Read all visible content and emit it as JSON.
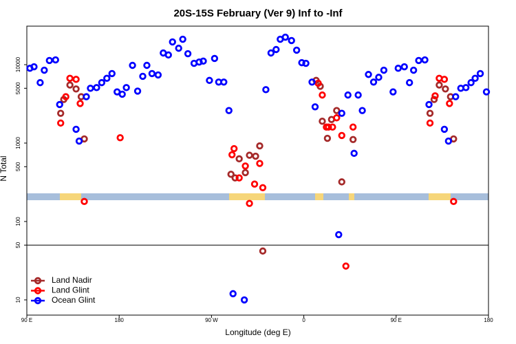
{
  "chart_data": {
    "type": "scatter",
    "title": "20S-15S February (Ver 9)   Inf to -Inf",
    "x_label": "Longitude (deg E)",
    "y_label": "N Total",
    "xlim": [
      90,
      540
    ],
    "xticks": [
      {
        "value": 90,
        "label": "90 E"
      },
      180,
      {
        "value": 270,
        "label": "90 W"
      },
      {
        "value": 360,
        "label": "0"
      },
      {
        "value": 450,
        "label": "90 E"
      },
      {
        "value": 540,
        "label": "180"
      }
    ],
    "ylim": [
      6.4,
      31000
    ],
    "yticks": [
      10,
      50,
      100,
      500,
      1000,
      5000,
      10000
    ],
    "log_y": true,
    "hline": 50,
    "legend": "bottom-left",
    "series": [
      {
        "name": "Land Nadir",
        "color": "#a52a2a",
        "x": [
          123,
          126,
          132,
          138,
          143,
          146,
          289,
          293,
          297,
          303,
          307,
          313,
          317,
          320,
          372,
          376,
          378,
          383,
          387,
          392,
          397,
          408,
          483,
          487,
          492,
          498,
          503,
          506
        ],
        "values": [
          2400,
          3600,
          5500,
          4900,
          3900,
          1130,
          400,
          360,
          630,
          420,
          700,
          680,
          920,
          42,
          6300,
          5300,
          1900,
          1150,
          2000,
          2600,
          320,
          1110,
          2400,
          3600,
          5500,
          4900,
          3900,
          1130
        ]
      },
      {
        "name": "Land Glint",
        "color": "#ff0000",
        "x": [
          123,
          128,
          132,
          138,
          142,
          146,
          181,
          290,
          292,
          297,
          303,
          307,
          312,
          317,
          320,
          374,
          378,
          382,
          384,
          388,
          392,
          397,
          401,
          408,
          483,
          488,
          492,
          497,
          502,
          506
        ],
        "values": [
          1800,
          3900,
          6700,
          6500,
          3200,
          180,
          1170,
          710,
          850,
          360,
          510,
          170,
          300,
          550,
          270,
          5800,
          4100,
          1600,
          1600,
          1600,
          2100,
          1250,
          27,
          1600,
          1800,
          4000,
          6700,
          6500,
          3200,
          180
        ]
      },
      {
        "name": "Ocean Glint",
        "color": "#0000ff",
        "x": [
          93,
          97,
          103,
          107,
          112,
          118,
          122,
          138,
          141,
          148,
          152,
          158,
          163,
          168,
          173,
          178,
          183,
          187,
          193,
          198,
          203,
          207,
          212,
          218,
          223,
          228,
          232,
          238,
          242,
          247,
          253,
          258,
          262,
          268,
          273,
          277,
          282,
          287,
          291,
          302,
          323,
          328,
          333,
          337,
          342,
          348,
          353,
          358,
          362,
          368,
          371,
          394,
          397,
          403,
          409,
          413,
          417,
          423,
          428,
          433,
          438,
          447,
          452,
          458,
          463,
          467,
          472,
          478,
          482,
          497,
          501,
          508,
          513,
          518,
          523,
          527,
          532,
          538
        ],
        "values": [
          9000,
          9400,
          5900,
          8500,
          11300,
          11500,
          3100,
          1500,
          1060,
          3900,
          5000,
          5100,
          5900,
          6700,
          7700,
          4500,
          4200,
          5100,
          9800,
          4600,
          7100,
          9800,
          7700,
          7400,
          14100,
          13300,
          19500,
          16200,
          21100,
          13800,
          10400,
          10800,
          11100,
          6300,
          12000,
          6000,
          6000,
          2600,
          12,
          10,
          4800,
          14100,
          15600,
          21100,
          22400,
          20300,
          15300,
          10600,
          10400,
          6000,
          2900,
          68,
          2400,
          4100,
          740,
          4100,
          2600,
          7500,
          6000,
          6900,
          8500,
          4500,
          9000,
          9400,
          5900,
          8500,
          11300,
          11500,
          3100,
          1500,
          1060,
          3900,
          5000,
          5100,
          5900,
          6700,
          7700,
          4500
        ]
      }
    ]
  }
}
